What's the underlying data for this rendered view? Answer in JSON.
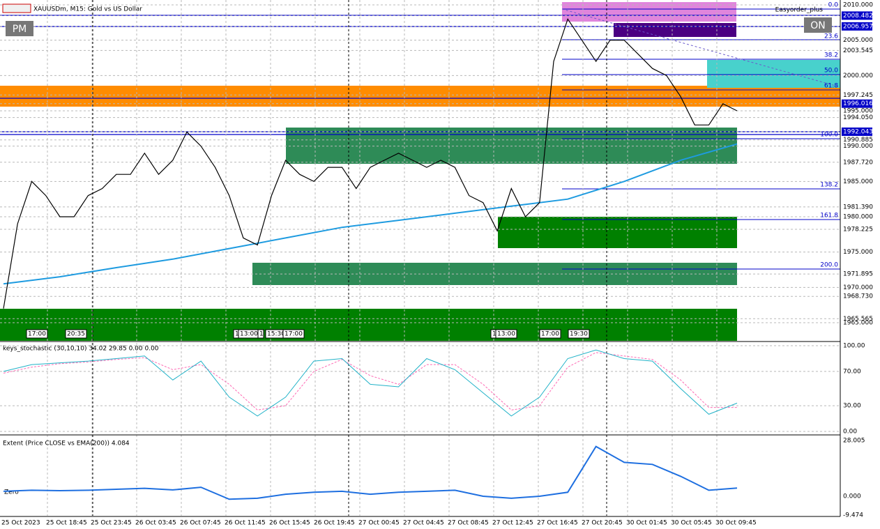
{
  "header": {
    "title": "XAUUSDm, M15:  Gold vs US Dollar",
    "pm_button": "PM",
    "on_button": "ON",
    "panel": "Easyorder_plus"
  },
  "price_axis": [
    "2010.000",
    "2008.482",
    "2006.957",
    "2005.000",
    "2003.545",
    "2000.000",
    "1997.245",
    "1996.016",
    "1995.000",
    "1994.050",
    "1992.043",
    "1990.885",
    "1990.000",
    "1987.720",
    "1985.000",
    "1981.390",
    "1980.000",
    "1978.225",
    "1975.000",
    "1971.895",
    "1970.000",
    "1968.730",
    "1965.565",
    "1965.000"
  ],
  "fib_levels": [
    "0.0",
    "23.6",
    "38.2",
    "50.0",
    "61.8",
    "100.0",
    "138.2",
    "161.8",
    "200.0"
  ],
  "chart_labels": [
    "17:00",
    "20:35",
    "1",
    "13:00",
    "1",
    "15:30",
    "17:00",
    "1",
    "13:00",
    "17:00",
    "19:30"
  ],
  "main": {
    "close": [
      1967,
      1979,
      1985,
      1983,
      1980,
      1980,
      1983,
      1984,
      1986,
      1986,
      1989,
      1986,
      1988,
      1992,
      1990,
      1987,
      1983,
      1977,
      1976,
      1983,
      1988,
      1986,
      1985,
      1987,
      1987,
      1984,
      1987,
      1988,
      1989,
      1988,
      1987,
      1988,
      1987,
      1983,
      1982,
      1978,
      1984,
      1980,
      1982,
      2002,
      2008,
      2005,
      2002,
      2005,
      2005,
      2003,
      2001,
      2000,
      1997,
      1993,
      1993,
      1996,
      1995
    ],
    "ema": [
      1970.5,
      1971.5,
      1972.8,
      1974,
      1975.5,
      1977,
      1978.5,
      1979.5,
      1980.5,
      1981.5,
      1982.5,
      1985,
      1988,
      1990.3
    ]
  },
  "stochastic": {
    "title": "keys_stochastic (30,10,10) 34.02 29.85 0.00 0.00",
    "axis": [
      "100.00",
      "70.00",
      "30.00",
      "0.00"
    ],
    "main": [
      70,
      78,
      80,
      82,
      85,
      88,
      60,
      82,
      40,
      18,
      40,
      82,
      85,
      55,
      52,
      85,
      72,
      45,
      18,
      40,
      85,
      95,
      85,
      82,
      50,
      20,
      33
    ],
    "signal": [
      68,
      75,
      79,
      81,
      84,
      86,
      72,
      78,
      55,
      25,
      30,
      70,
      84,
      65,
      55,
      78,
      78,
      55,
      25,
      30,
      75,
      92,
      88,
      84,
      60,
      28,
      28
    ]
  },
  "extent": {
    "title": "Extent (Price CLOSE vs EMA(200)) 4.084",
    "axis": [
      "28.005",
      "0.000",
      "-9.474"
    ],
    "zero": "Zero",
    "values": [
      2.5,
      3,
      2.8,
      3,
      3.5,
      4,
      3.2,
      4.5,
      -1.5,
      -1,
      1,
      2,
      2.5,
      1,
      2,
      2.5,
      3,
      0,
      -1,
      0,
      2,
      25,
      17,
      16,
      10,
      3,
      4.1
    ]
  },
  "time_axis": [
    "25 Oct 2023",
    "25 Oct 18:45",
    "25 Oct 23:45",
    "26 Oct 03:45",
    "26 Oct 07:45",
    "26 Oct 11:45",
    "26 Oct 15:45",
    "26 Oct 19:45",
    "27 Oct 00:45",
    "27 Oct 04:45",
    "27 Oct 08:45",
    "27 Oct 12:45",
    "27 Oct 16:45",
    "27 Oct 20:45",
    "30 Oct 01:45",
    "30 Oct 05:45",
    "30 Oct 09:45"
  ]
}
